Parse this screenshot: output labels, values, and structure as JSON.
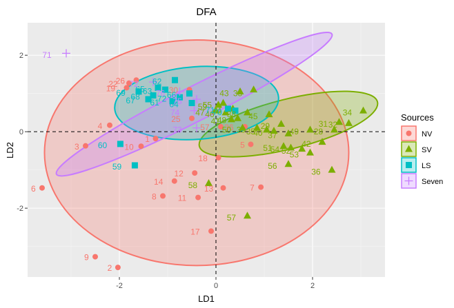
{
  "chart_data": {
    "type": "scatter",
    "title": "DFA",
    "xlabel": "LD1",
    "ylabel": "LD2",
    "xlim": [
      -3.9,
      3.5
    ],
    "ylim": [
      -3.8,
      2.85
    ],
    "xticks": [
      -2,
      0,
      2
    ],
    "yticks": [
      -2,
      0,
      2
    ],
    "grid": true,
    "legend": {
      "title": "Sources",
      "position": "right"
    },
    "colors": {
      "NV": "#F8766D",
      "SV": "#7CAE00",
      "LS": "#00BFC4",
      "Seven": "#C77CFF"
    },
    "ellipses": [
      {
        "group": "NV",
        "cx": -0.4,
        "cy": -0.55,
        "rx": 3.15,
        "ry": 2.95,
        "angle": 0
      },
      {
        "group": "SV",
        "cx": 1.5,
        "cy": 0.2,
        "rx": 1.9,
        "ry": 0.65,
        "angle": -14
      },
      {
        "group": "LS",
        "cx": -0.4,
        "cy": 0.75,
        "rx": 1.7,
        "ry": 0.95,
        "angle": -4
      },
      {
        "group": "Seven",
        "cx": -0.45,
        "cy": 0.72,
        "rx": 3.2,
        "ry": 0.45,
        "angle": -27
      }
    ],
    "series": [
      {
        "name": "NV",
        "shape": "circle",
        "points": [
          {
            "label": "1",
            "x": -1.25,
            "y": -0.18,
            "lx": -1.42,
            "ly": -0.2
          },
          {
            "label": "2",
            "x": -2.03,
            "y": -3.55,
            "lx": -2.2,
            "ly": -3.57
          },
          {
            "label": "3",
            "x": -2.7,
            "y": -0.37,
            "lx": -2.88,
            "ly": -0.39
          },
          {
            "label": "4",
            "x": -2.2,
            "y": 0.17,
            "lx": -2.4,
            "ly": 0.15
          },
          {
            "label": "5",
            "x": 0.72,
            "y": -0.33,
            "lx": 0.55,
            "ly": -0.35
          },
          {
            "label": "6",
            "x": -3.6,
            "y": -1.47,
            "lx": -3.78,
            "ly": -1.49
          },
          {
            "label": "7",
            "x": 0.93,
            "y": -1.45,
            "lx": 0.75,
            "ly": -1.47
          },
          {
            "label": "8",
            "x": -1.1,
            "y": -1.68,
            "lx": -1.28,
            "ly": -1.7
          },
          {
            "label": "9",
            "x": -2.5,
            "y": -3.27,
            "lx": -2.68,
            "ly": -3.29
          },
          {
            "label": "10",
            "x": -1.55,
            "y": -0.38,
            "lx": -1.8,
            "ly": -0.4
          },
          {
            "label": "11",
            "x": -0.37,
            "y": -1.72,
            "lx": -0.7,
            "ly": -1.74
          },
          {
            "label": "12",
            "x": -0.44,
            "y": -1.08,
            "lx": -0.77,
            "ly": -1.1
          },
          {
            "label": "13",
            "x": 0.15,
            "y": -1.47,
            "lx": -0.15,
            "ly": -1.49
          },
          {
            "label": "14",
            "x": -0.86,
            "y": -1.29,
            "lx": -1.19,
            "ly": -1.31
          },
          {
            "label": "17",
            "x": -0.1,
            "y": -2.6,
            "lx": -0.43,
            "ly": -2.62
          },
          {
            "label": "18",
            "x": 0.05,
            "y": -0.68,
            "lx": -0.27,
            "ly": -0.7
          },
          {
            "label": "19",
            "x": -1.85,
            "y": 1.15,
            "lx": -2.18,
            "ly": 1.13
          },
          {
            "label": "22",
            "x": -1.8,
            "y": 1.27,
            "lx": -2.13,
            "ly": 1.25
          },
          {
            "label": "25",
            "x": -0.5,
            "y": 0.35,
            "lx": -0.83,
            "ly": 0.33
          },
          {
            "label": "26",
            "x": -1.65,
            "y": 1.35,
            "lx": -1.98,
            "ly": 1.33
          },
          {
            "label": "30",
            "x": -0.55,
            "y": 1.1,
            "lx": -0.88,
            "ly": 1.08
          },
          {
            "label": "57",
            "x": 0.1,
            "y": 0.13,
            "lx": -0.23,
            "ly": 0.11
          },
          {
            "label": "36",
            "x": 0.6,
            "y": 0.13,
            "lx": 0.27,
            "ly": 0.11
          }
        ]
      },
      {
        "name": "SV",
        "shape": "triangle",
        "points": [
          {
            "label": "33",
            "x": 0.78,
            "y": 1.1,
            "lx": 0.45,
            "ly": 1.0
          },
          {
            "label": "34",
            "x": 3.05,
            "y": 0.55,
            "lx": 2.72,
            "ly": 0.5
          },
          {
            "label": "31",
            "x": 2.55,
            "y": 0.25,
            "lx": 2.22,
            "ly": 0.2
          },
          {
            "label": "32",
            "x": 2.75,
            "y": 0.22,
            "lx": 2.42,
            "ly": 0.18
          },
          {
            "label": "28",
            "x": 2.45,
            "y": 0.05,
            "lx": 2.12,
            "ly": 0.0
          },
          {
            "label": "29",
            "x": 1.35,
            "y": 0.2,
            "lx": 1.02,
            "ly": 0.15
          },
          {
            "label": "35",
            "x": 1.05,
            "y": 0.05,
            "lx": 0.72,
            "ly": 0.0
          },
          {
            "label": "36",
            "x": 2.4,
            "y": -1.0,
            "lx": 2.07,
            "ly": -1.05
          },
          {
            "label": "37",
            "x": 1.5,
            "y": -0.05,
            "lx": 1.17,
            "ly": -0.1
          },
          {
            "label": "38",
            "x": 0.65,
            "y": 0.5,
            "lx": 0.32,
            "ly": 0.45
          },
          {
            "label": "39",
            "x": 0.85,
            "y": 0.1,
            "lx": 0.52,
            "ly": 0.05
          },
          {
            "label": "40",
            "x": 1.2,
            "y": 0.02,
            "lx": 0.87,
            "ly": -0.03
          },
          {
            "label": "41",
            "x": 0.32,
            "y": 0.32,
            "lx": -0.01,
            "ly": 0.27
          },
          {
            "label": "42",
            "x": 2.2,
            "y": -0.27,
            "lx": 1.87,
            "ly": -0.32
          },
          {
            "label": "43",
            "x": 0.5,
            "y": 1.05,
            "lx": 0.17,
            "ly": 1.0
          },
          {
            "label": "44",
            "x": 0.35,
            "y": 0.6,
            "lx": 0.02,
            "ly": 0.55
          },
          {
            "label": "45",
            "x": 1.1,
            "y": 0.45,
            "lx": 0.77,
            "ly": 0.4
          },
          {
            "label": "46",
            "x": 0.2,
            "y": 0.5,
            "lx": -0.13,
            "ly": 0.45
          },
          {
            "label": "47",
            "x": 0.0,
            "y": 0.55,
            "lx": -0.33,
            "ly": 0.5
          },
          {
            "label": "48",
            "x": 0.45,
            "y": 0.35,
            "lx": 0.12,
            "ly": 0.3
          },
          {
            "label": "49",
            "x": 1.95,
            "y": 0.05,
            "lx": 1.62,
            "ly": 0.0
          },
          {
            "label": "50",
            "x": 0.55,
            "y": 0.1,
            "lx": 0.22,
            "ly": 0.05
          },
          {
            "label": "51",
            "x": 1.4,
            "y": -0.38,
            "lx": 1.07,
            "ly": -0.43
          },
          {
            "label": "52",
            "x": 1.78,
            "y": -0.45,
            "lx": 1.45,
            "ly": -0.5
          },
          {
            "label": "53",
            "x": 1.95,
            "y": -0.55,
            "lx": 1.62,
            "ly": -0.6
          },
          {
            "label": "54",
            "x": 1.55,
            "y": -0.42,
            "lx": 1.22,
            "ly": -0.47
          },
          {
            "label": "55",
            "x": 0.15,
            "y": 0.75,
            "lx": -0.18,
            "ly": 0.7
          },
          {
            "label": "56",
            "x": 1.5,
            "y": -0.85,
            "lx": 1.17,
            "ly": -0.9
          },
          {
            "label": "57",
            "x": 0.65,
            "y": -2.2,
            "lx": 0.32,
            "ly": -2.25
          },
          {
            "label": "58",
            "x": -0.15,
            "y": -1.35,
            "lx": -0.48,
            "ly": -1.4
          },
          {
            "label": "59",
            "x": 0.05,
            "y": 0.7,
            "lx": -0.28,
            "ly": 0.65
          }
        ]
      },
      {
        "name": "LS",
        "shape": "square",
        "points": [
          {
            "label": "59",
            "x": -1.68,
            "y": -0.88,
            "lx": -2.05,
            "ly": -0.92
          },
          {
            "label": "60",
            "x": -1.98,
            "y": -0.32,
            "lx": -2.35,
            "ly": -0.36
          },
          {
            "label": "61",
            "x": -0.9,
            "y": 0.8,
            "lx": -1.27,
            "ly": 0.76
          },
          {
            "label": "62",
            "x": -0.85,
            "y": 1.35,
            "lx": -1.22,
            "ly": 1.31
          },
          {
            "label": "63",
            "x": -1.05,
            "y": 1.1,
            "lx": -1.42,
            "ly": 1.06
          },
          {
            "label": "64",
            "x": -0.5,
            "y": 0.75,
            "lx": -0.87,
            "ly": 0.71
          },
          {
            "label": "65",
            "x": -1.2,
            "y": 1.15,
            "lx": -1.57,
            "ly": 1.11
          },
          {
            "label": "66",
            "x": -0.55,
            "y": 1.0,
            "lx": -0.92,
            "ly": 0.96
          },
          {
            "label": "67",
            "x": -1.4,
            "y": 0.85,
            "lx": -1.77,
            "ly": 0.81
          },
          {
            "label": "68",
            "x": -1.3,
            "y": 0.95,
            "lx": -1.67,
            "ly": 0.91
          },
          {
            "label": "69",
            "x": -1.6,
            "y": 1.05,
            "lx": -1.97,
            "ly": 1.01
          },
          {
            "label": "70",
            "x": 0.4,
            "y": 0.55,
            "lx": 0.03,
            "ly": 0.51
          },
          {
            "label": "71",
            "x": 0.25,
            "y": 0.6,
            "lx": -0.12,
            "ly": 0.56
          },
          {
            "label": "72",
            "x": -0.75,
            "y": 0.9,
            "lx": -1.12,
            "ly": 0.86
          }
        ]
      },
      {
        "name": "Seven",
        "shape": "cross",
        "points": [
          {
            "label": "71",
            "x": -3.1,
            "y": 2.05,
            "lx": -3.5,
            "ly": 2.0
          },
          {
            "label": "72",
            "x": -1.3,
            "y": 1.3,
            "lx": -1.7,
            "ly": 1.25
          },
          {
            "label": "73",
            "x": -0.4,
            "y": 0.1,
            "lx": -0.8,
            "ly": 0.05
          },
          {
            "label": "74",
            "x": -0.45,
            "y": 0.55,
            "lx": -0.85,
            "ly": 0.5
          },
          {
            "label": "75",
            "x": -0.4,
            "y": 0.85,
            "lx": -0.8,
            "ly": 0.8
          },
          {
            "label": "76",
            "x": -0.75,
            "y": 1.05,
            "lx": -1.15,
            "ly": 1.0
          }
        ]
      }
    ]
  }
}
